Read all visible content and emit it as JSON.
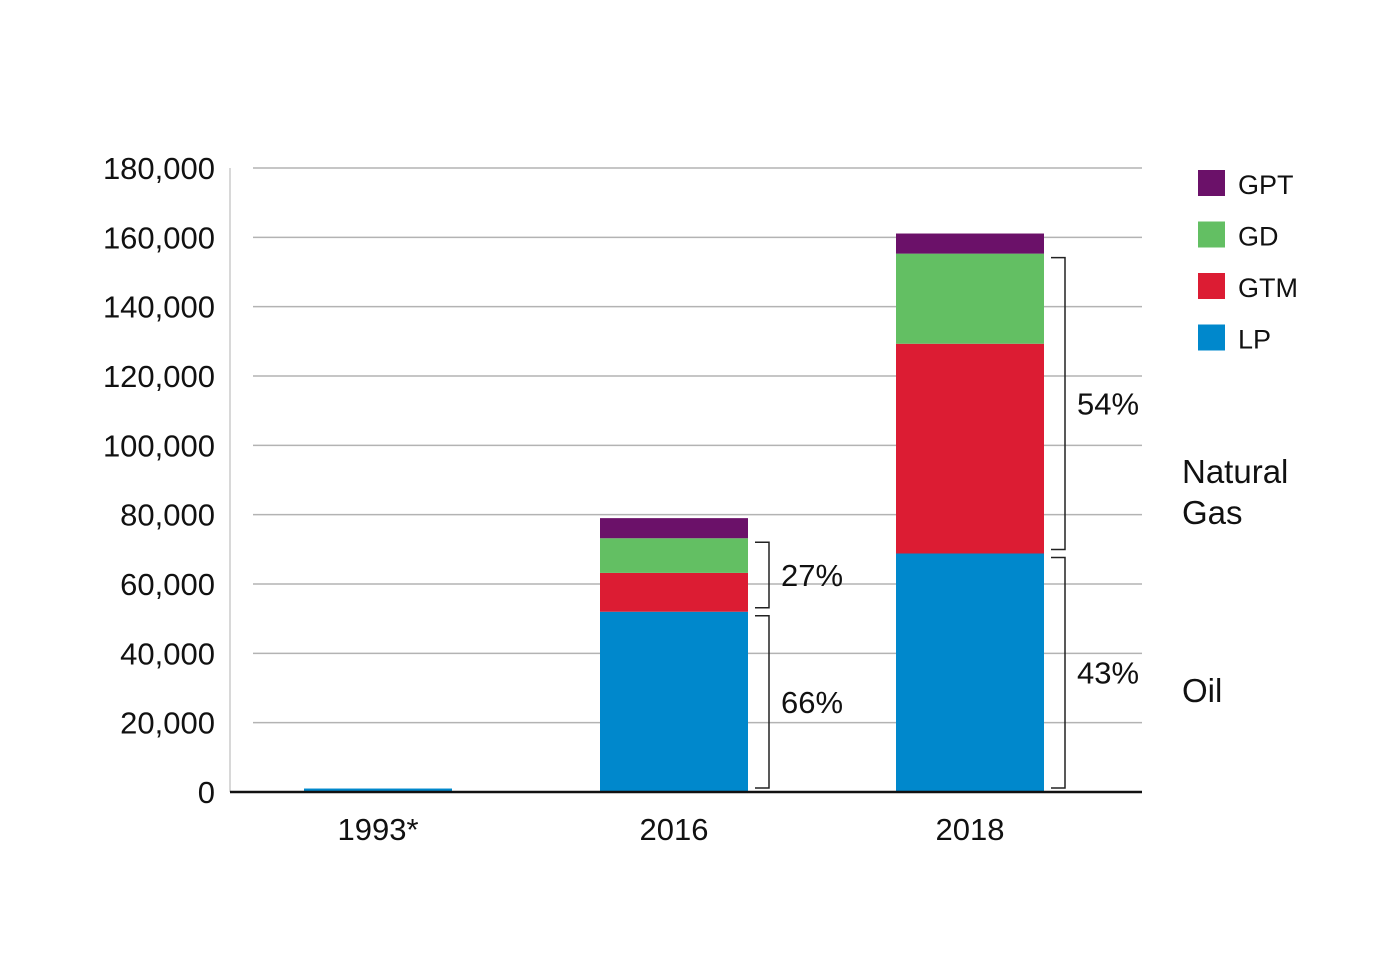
{
  "chart_data": {
    "type": "bar",
    "stacked": true,
    "categories": [
      "1993*",
      "2016",
      "2018"
    ],
    "series": [
      {
        "name": "LP",
        "color": "#0088cc",
        "values": [
          1000,
          52000,
          68800
        ]
      },
      {
        "name": "GTM",
        "color": "#dc1c33",
        "values": [
          0,
          11200,
          60500
        ]
      },
      {
        "name": "GD",
        "color": "#63bf63",
        "values": [
          0,
          10000,
          26000
        ]
      },
      {
        "name": "GPT",
        "color": "#6b1169",
        "values": [
          0,
          5800,
          5800
        ]
      }
    ],
    "ylim": [
      0,
      180000
    ],
    "yticks": [
      0,
      20000,
      40000,
      60000,
      80000,
      100000,
      120000,
      140000,
      160000,
      180000
    ],
    "ytick_labels": [
      "0",
      "20,000",
      "40,000",
      "60,000",
      "80,000",
      "100,000",
      "120,000",
      "140,000",
      "160,000",
      "180,000"
    ],
    "grid": true,
    "legend": {
      "placement": "top-right",
      "order": [
        "GPT",
        "GD",
        "GTM",
        "LP"
      ]
    },
    "brackets": [
      {
        "category": "2016",
        "from": 0,
        "to": 52000,
        "label": "66%"
      },
      {
        "category": "2016",
        "from": 52000,
        "to": 73200,
        "label": "27%"
      },
      {
        "category": "2018",
        "from": 0,
        "to": 68800,
        "label": "43%"
      },
      {
        "category": "2018",
        "from": 68800,
        "to": 155300,
        "label": "54%"
      }
    ],
    "group_labels": {
      "oil": "Oil",
      "natural_gas": [
        "Natural",
        "Gas"
      ]
    },
    "title": "",
    "xlabel": "",
    "ylabel": ""
  }
}
